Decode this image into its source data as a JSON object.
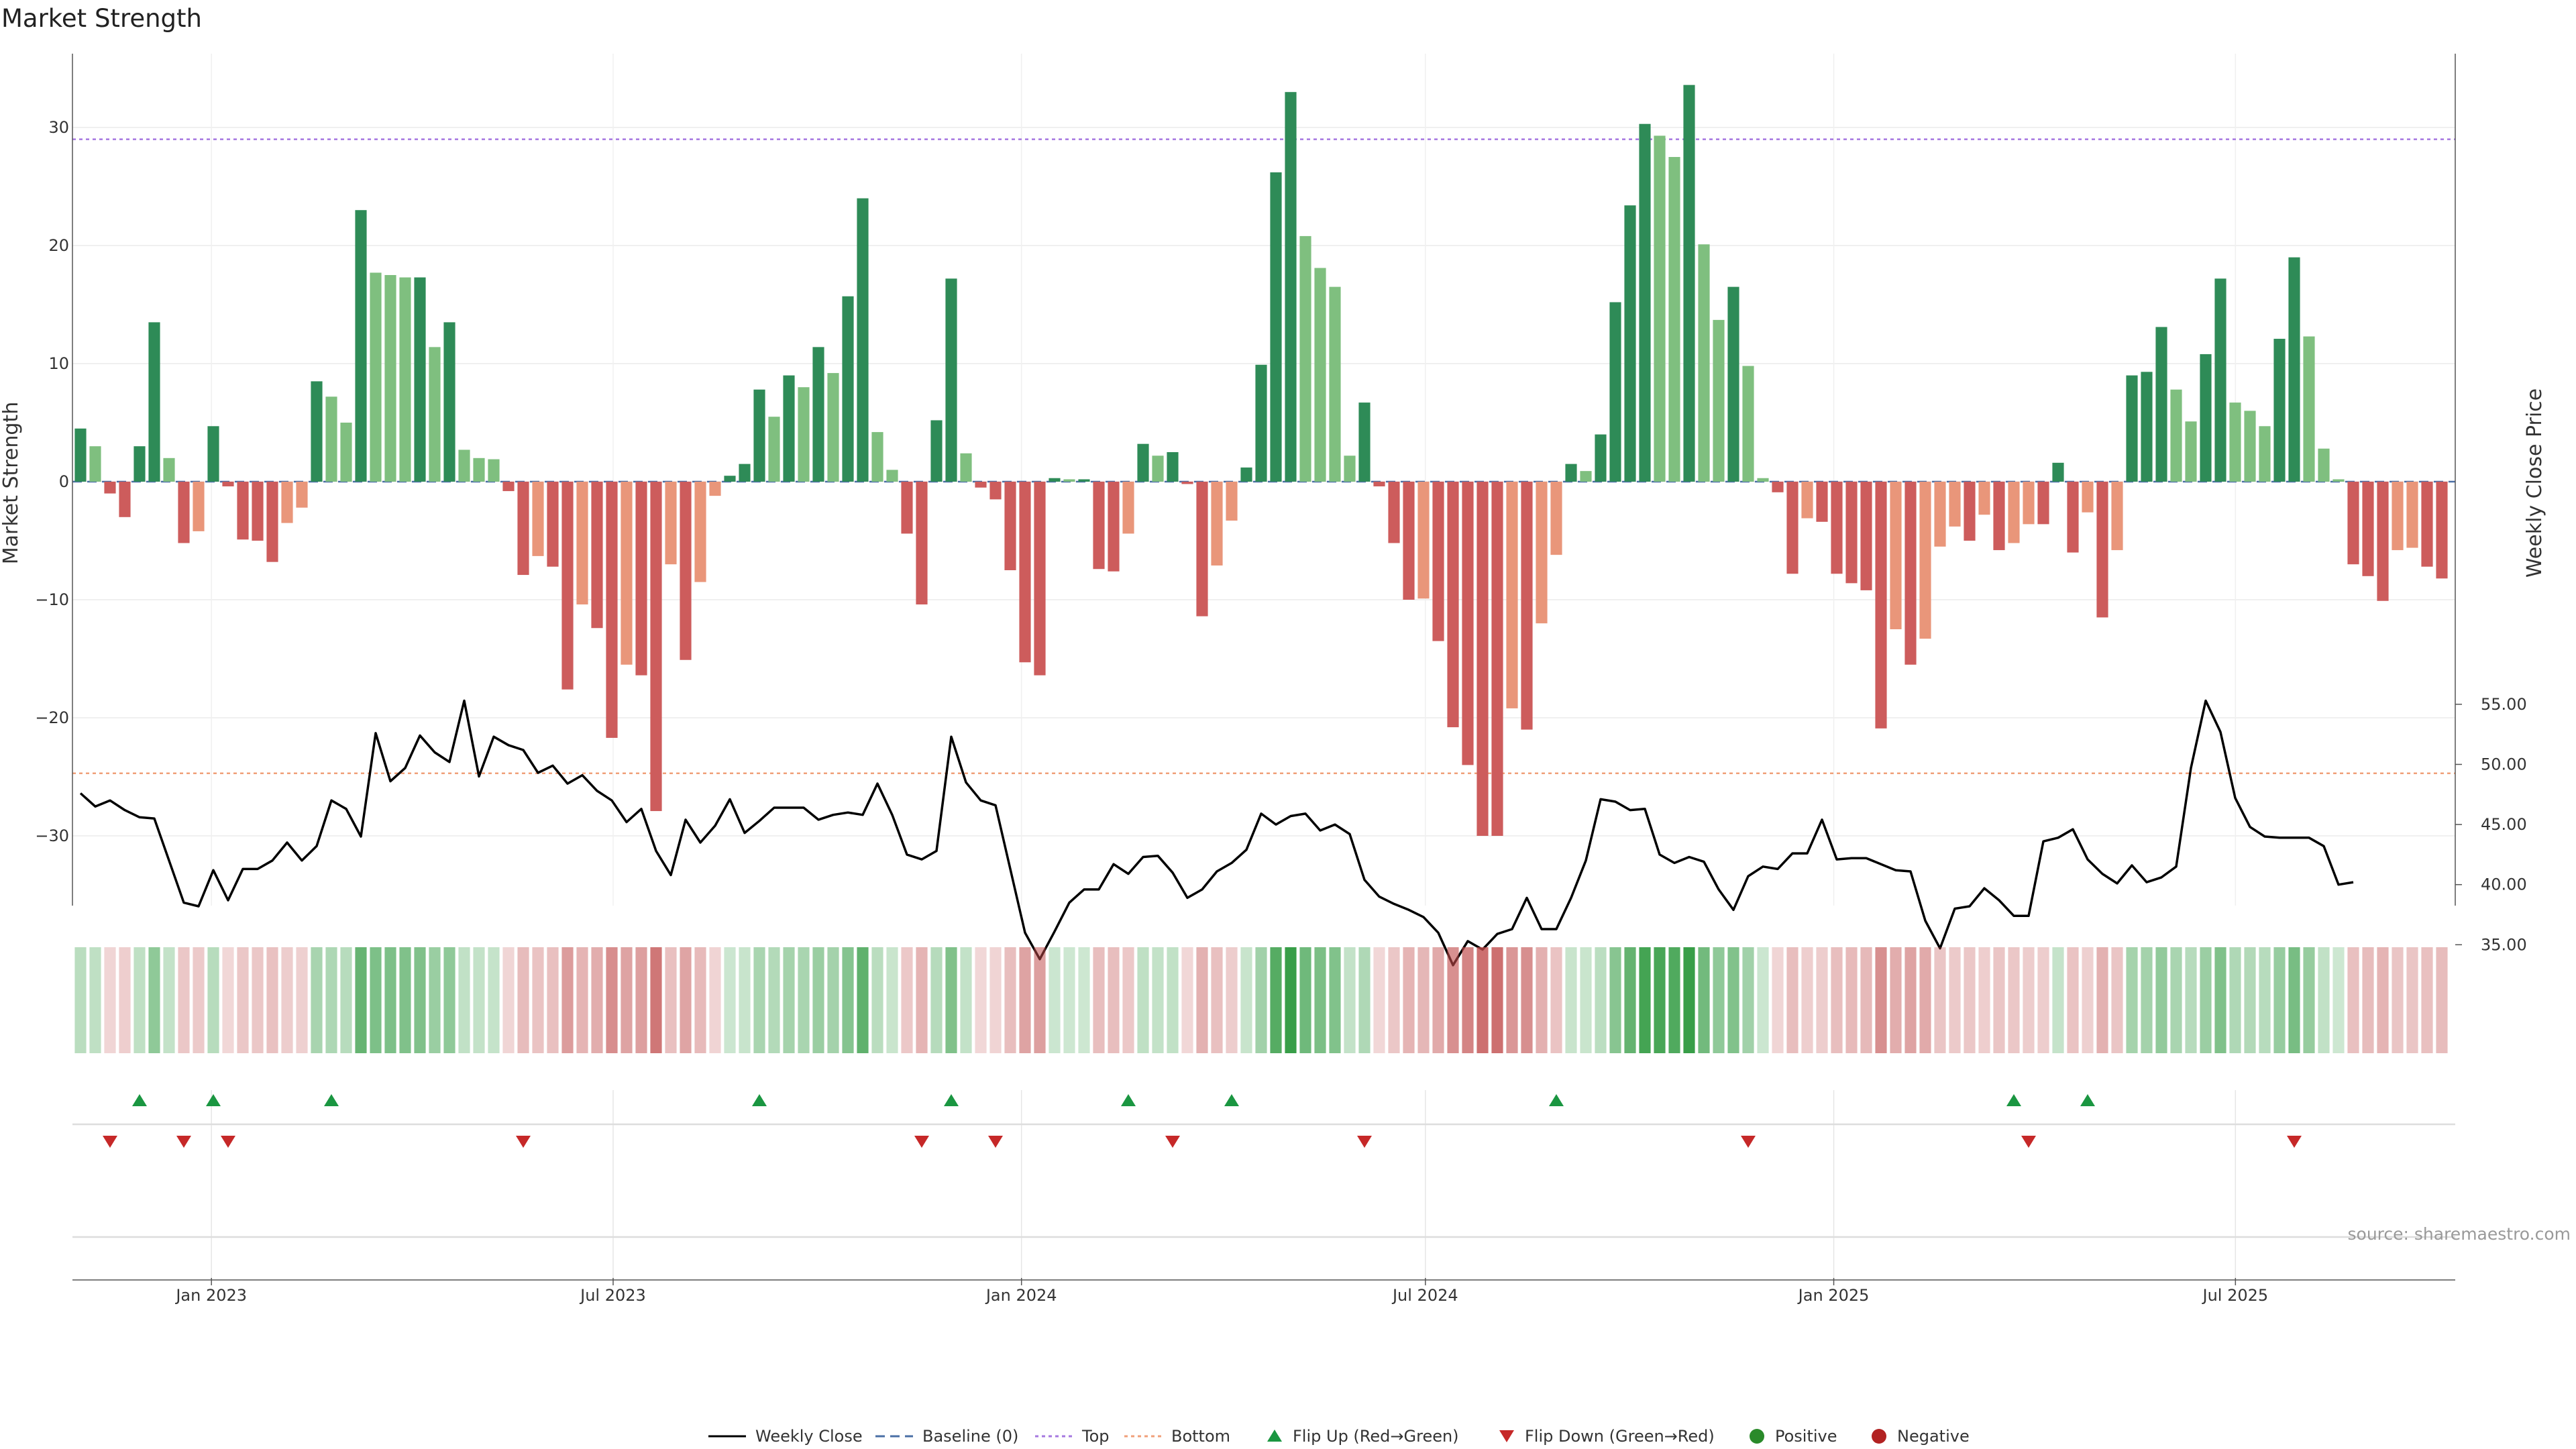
{
  "chart_data": {
    "type": "bar",
    "title": "Market Strength",
    "ylabel": "Market Strength",
    "y2label": "Weekly Close Price",
    "ylim": [
      -36,
      36
    ],
    "y2lim": [
      31.0,
      57.0
    ],
    "y_ticks": [
      30,
      20,
      10,
      0,
      -10,
      -20,
      -30
    ],
    "y_tick_labels": [
      "30",
      "20",
      "10",
      "0",
      "−10",
      "−20",
      "−30"
    ],
    "y2_ticks": [
      55,
      50,
      45,
      40,
      35
    ],
    "y2_tick_labels": [
      "55.00",
      "50.00",
      "45.00",
      "40.00",
      "35.00"
    ],
    "x_ticks": [
      {
        "date": "2023-01-01",
        "label": "Jan 2023"
      },
      {
        "date": "2023-07-01",
        "label": "Jul 2023"
      },
      {
        "date": "2024-01-01",
        "label": "Jan 2024"
      },
      {
        "date": "2024-07-01",
        "label": "Jul 2024"
      },
      {
        "date": "2025-01-01",
        "label": "Jan 2025"
      },
      {
        "date": "2025-07-01",
        "label": "Jul 2025"
      }
    ],
    "date_range": [
      "2022-11-03",
      "2025-10-02"
    ],
    "reference_lines": [
      {
        "name": "Top",
        "value": 29.0,
        "color": "#a678e0"
      },
      {
        "name": "Bottom",
        "value": -24.7,
        "color": "#f0a07a"
      },
      {
        "name": "Baseline (0)",
        "value": 0,
        "color": "#4a6fa5"
      }
    ],
    "strength": [
      4.5,
      3.0,
      -1.0,
      -3.0,
      3.0,
      13.5,
      2.0,
      -5.2,
      -4.2,
      4.7,
      -0.4,
      -4.9,
      -5.0,
      -6.8,
      -3.5,
      -2.2,
      8.5,
      7.2,
      5.0,
      23.0,
      17.7,
      17.5,
      17.3,
      17.3,
      11.4,
      13.5,
      2.7,
      2.0,
      1.9,
      -0.8,
      -7.9,
      -6.3,
      -7.2,
      -17.6,
      -10.4,
      -12.4,
      -21.7,
      -15.5,
      -16.4,
      -27.9,
      -7.0,
      -15.1,
      -8.5,
      -1.2,
      0.5,
      1.5,
      7.8,
      5.5,
      9.0,
      8.0,
      11.4,
      9.2,
      15.7,
      24.0,
      4.2,
      1.0,
      -4.4,
      -10.4,
      5.2,
      17.2,
      2.4,
      -0.5,
      -1.5,
      -7.5,
      -15.3,
      -16.4,
      0.3,
      0.2,
      0.2,
      -7.4,
      -7.6,
      -4.4,
      3.2,
      2.2,
      2.5,
      -0.2,
      -11.4,
      -7.1,
      -3.3,
      1.2,
      9.9,
      26.2,
      33.0,
      20.8,
      18.1,
      16.5,
      2.2,
      6.7,
      -0.4,
      -5.2,
      -10.0,
      -9.9,
      -13.5,
      -20.8,
      -24.0,
      -30.0,
      -30.0,
      -19.2,
      -21.0,
      -12.0,
      -6.2,
      1.5,
      0.9,
      4.0,
      15.2,
      23.4,
      30.3,
      29.3,
      27.5,
      33.6,
      20.1,
      13.7,
      16.5,
      9.8,
      0.3,
      -0.9,
      -7.8,
      -3.1,
      -3.4,
      -7.8,
      -8.6,
      -9.2,
      -20.9,
      -12.5,
      -15.5,
      -13.3,
      -5.5,
      -3.8,
      -5.0,
      -2.8,
      -5.8,
      -5.2,
      -3.6,
      -3.6,
      1.6,
      -6.0,
      -2.6,
      -11.5,
      -5.8,
      9.0,
      9.3,
      13.1,
      7.8,
      5.1,
      10.8,
      17.2,
      6.7,
      6.0,
      4.7,
      12.1,
      19.0,
      12.3,
      2.8,
      0.2,
      -7.0,
      -8.0,
      -10.1,
      -5.8,
      -5.6,
      -7.2,
      -8.2
    ],
    "price": [
      47.6,
      46.5,
      47.0,
      46.2,
      45.6,
      45.5,
      42.0,
      38.5,
      38.2,
      41.2,
      38.7,
      41.3,
      41.3,
      42.0,
      43.5,
      42.0,
      43.2,
      47.0,
      46.3,
      44.0,
      52.6,
      48.6,
      49.7,
      52.4,
      51.0,
      50.2,
      55.3,
      49.0,
      52.3,
      51.6,
      51.2,
      49.3,
      49.9,
      48.4,
      49.1,
      47.8,
      47.0,
      45.2,
      46.3,
      42.8,
      40.8,
      45.4,
      43.5,
      44.9,
      47.1,
      44.3,
      45.3,
      46.4,
      46.4,
      46.4,
      45.4,
      45.8,
      46.0,
      45.8,
      48.4,
      45.8,
      42.5,
      42.1,
      42.8,
      52.3,
      48.5,
      47.0,
      46.6,
      41.3,
      36.0,
      33.8,
      36.1,
      38.5,
      39.6,
      39.6,
      41.7,
      40.9,
      42.3,
      42.4,
      41.0,
      38.9,
      39.6,
      41.1,
      41.8,
      42.9,
      45.9,
      45.0,
      45.7,
      45.9,
      44.5,
      45.0,
      44.2,
      40.4,
      39.0,
      38.4,
      37.9,
      37.3,
      36.0,
      33.3,
      35.3,
      34.6,
      35.9,
      36.3,
      38.9,
      36.3,
      36.3,
      38.9,
      42.0,
      47.1,
      46.9,
      46.2,
      46.3,
      42.5,
      41.8,
      42.3,
      41.9,
      39.6,
      37.9,
      40.7,
      41.5,
      41.3,
      42.6,
      42.6,
      45.4,
      42.1,
      42.2,
      42.2,
      41.7,
      41.2,
      41.1,
      37.0,
      34.7,
      38.0,
      38.2,
      39.7,
      38.7,
      37.4,
      37.4,
      43.6,
      43.9,
      44.6,
      42.1,
      40.9,
      40.1,
      41.6,
      40.2,
      40.6,
      41.5,
      49.7,
      55.3,
      52.7,
      47.2,
      44.8,
      44.0,
      43.9,
      43.9,
      43.9,
      43.2,
      40.0,
      40.2
    ],
    "flip_up_indices": [
      4,
      9,
      17,
      46,
      59,
      71,
      78,
      100,
      131,
      136
    ],
    "flip_down_indices": [
      2,
      7,
      10,
      30,
      57,
      62,
      74,
      87,
      113,
      132,
      150
    ],
    "legend": [
      {
        "key": "weekly_close",
        "label": "Weekly Close",
        "kind": "line"
      },
      {
        "key": "baseline",
        "label": "Baseline (0)",
        "kind": "dashed"
      },
      {
        "key": "top",
        "label": "Top",
        "kind": "dotted"
      },
      {
        "key": "bottom",
        "label": "Bottom",
        "kind": "dotted"
      },
      {
        "key": "flip_up",
        "label": "Flip Up (Red→Green)",
        "kind": "triangle-up"
      },
      {
        "key": "flip_down",
        "label": "Flip Down (Green→Red)",
        "kind": "triangle-down"
      },
      {
        "key": "positive",
        "label": "Positive",
        "kind": "dot"
      },
      {
        "key": "negative",
        "label": "Negative",
        "kind": "dot"
      }
    ],
    "colors": {
      "strong_green": "#2e8b57",
      "light_green": "#7fbf7f",
      "strong_red": "#cd5c5c",
      "light_red": "#e9967a",
      "price_line": "#000000",
      "flip_up": "#1a9641",
      "flip_down": "#c62828",
      "positive_dot": "#2a8a2a",
      "negative_dot": "#b22222"
    },
    "source": "source: sharemaestro.com",
    "legend_position": "bottom"
  }
}
